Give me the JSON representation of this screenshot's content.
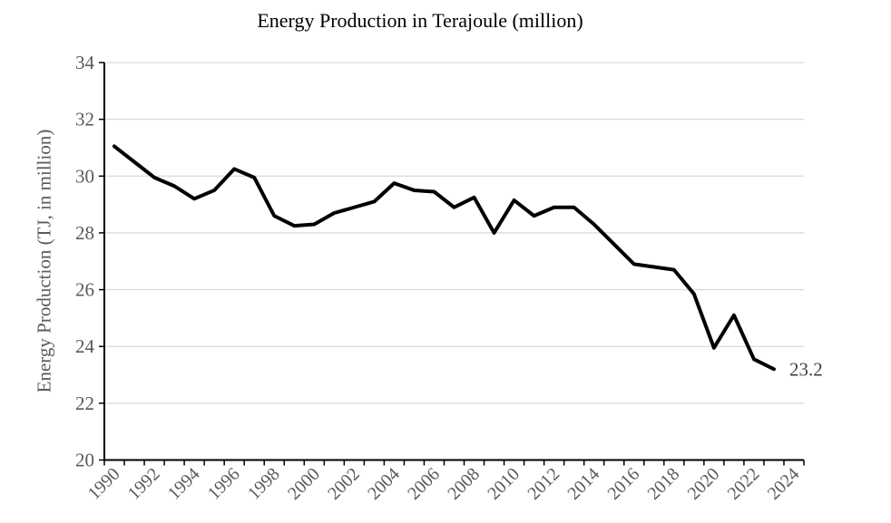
{
  "chart_data": {
    "type": "line",
    "title": "Energy Production in Terajoule (million)",
    "ylabel": "Energy Production (TJ, in million)",
    "xlabel": "",
    "x": [
      1990,
      1991,
      1992,
      1993,
      1994,
      1995,
      1996,
      1997,
      1998,
      1999,
      2000,
      2001,
      2002,
      2003,
      2004,
      2005,
      2006,
      2007,
      2008,
      2009,
      2010,
      2011,
      2012,
      2013,
      2014,
      2015,
      2016,
      2017,
      2018,
      2019,
      2020,
      2021,
      2022,
      2023
    ],
    "series": [
      {
        "values": [
          31.05,
          30.5,
          29.95,
          29.65,
          29.2,
          29.5,
          30.25,
          29.95,
          28.6,
          28.25,
          28.3,
          28.7,
          28.9,
          29.1,
          29.75,
          29.5,
          29.45,
          28.9,
          29.25,
          28.0,
          29.15,
          28.6,
          28.9,
          28.9,
          28.3,
          27.6,
          26.9,
          26.8,
          26.7,
          25.85,
          23.95,
          25.1,
          23.55,
          23.2
        ]
      }
    ],
    "end_label": "23.2",
    "ylim": [
      20,
      34
    ],
    "y_ticks": [
      20,
      22,
      24,
      26,
      28,
      30,
      32,
      34
    ],
    "x_tick_labels": [
      "1990",
      "1992",
      "1994",
      "1996",
      "1998",
      "2000",
      "2002",
      "2004",
      "2006",
      "2008",
      "2010",
      "2012",
      "2014",
      "2016",
      "2018",
      "2020",
      "2022",
      "2024"
    ],
    "x_axis_last_category": 2024,
    "grid": "horizontal",
    "legend": "none",
    "colors": {
      "line": "#000000",
      "grid": "#d9d9d9",
      "axis": "#000000",
      "tick_labels": "#595959",
      "axis_title": "#595959",
      "chart_title": "#000000",
      "end_label": "#404040",
      "background": "#ffffff"
    }
  }
}
